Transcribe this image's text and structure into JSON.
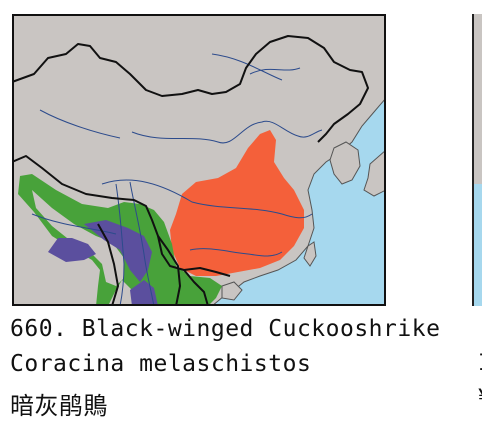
{
  "species": {
    "number_title": "660. Black-winged Cuckooshrike",
    "scientific_name": "Coracina melaschistos",
    "chinese_name": "暗灰鹃鵙"
  },
  "next_entry_fragment": {
    "line2_char": "I",
    "line3_char": "¥"
  },
  "map": {
    "land_color": "#c9c5c2",
    "sea_color": "#a6d8ee",
    "border_color": "#111111",
    "river_color": "#2c4b8c",
    "range_layers": [
      {
        "name": "orange-range",
        "color": "#f4603a"
      },
      {
        "name": "green-range",
        "color": "#48a23a"
      },
      {
        "name": "purple-range",
        "color": "#5b4f9e"
      }
    ]
  }
}
